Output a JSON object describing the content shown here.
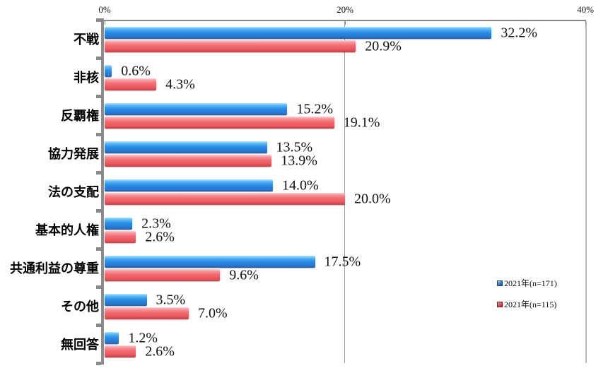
{
  "chart_data": {
    "type": "bar",
    "orientation": "horizontal",
    "title": "",
    "xlabel": "",
    "ylabel": "",
    "xlim": [
      0,
      40
    ],
    "x_ticks": [
      "0%",
      "20%",
      "40%"
    ],
    "x_tick_values": [
      0,
      20,
      40
    ],
    "grid": "vertical gridline at 20%",
    "value_suffix": "%",
    "legend_position": "inside-right-bottom",
    "categories": [
      "不戦",
      "非核",
      "反覇権",
      "協力発展",
      "法の支配",
      "基本的人権",
      "共通利益の尊重",
      "その他",
      "無回答"
    ],
    "series": [
      {
        "name": "2021年(n=171)",
        "color": "#2f93e8",
        "values": [
          32.2,
          0.6,
          15.2,
          13.5,
          14.0,
          2.3,
          17.5,
          3.5,
          1.2
        ],
        "labels": [
          "32.2%",
          "0.6%",
          "15.2%",
          "13.5%",
          "14.0%",
          "2.3%",
          "17.5%",
          "3.5%",
          "1.2%"
        ]
      },
      {
        "name": "2021年(n=115)",
        "color": "#f26b70",
        "values": [
          20.9,
          4.3,
          19.1,
          13.9,
          20.0,
          2.6,
          9.6,
          7.0,
          2.6
        ],
        "labels": [
          "20.9%",
          "4.3%",
          "19.1%",
          "13.9%",
          "20.0%",
          "2.6%",
          "9.6%",
          "7.0%",
          "2.6%"
        ]
      }
    ],
    "colors": {
      "axis": "#8a8a8a",
      "gridline": "#9a9a9a",
      "plot_border": "#b9b9b9",
      "text": "#111111",
      "series_blue": "#2f93e8",
      "series_red": "#f26b70"
    }
  }
}
